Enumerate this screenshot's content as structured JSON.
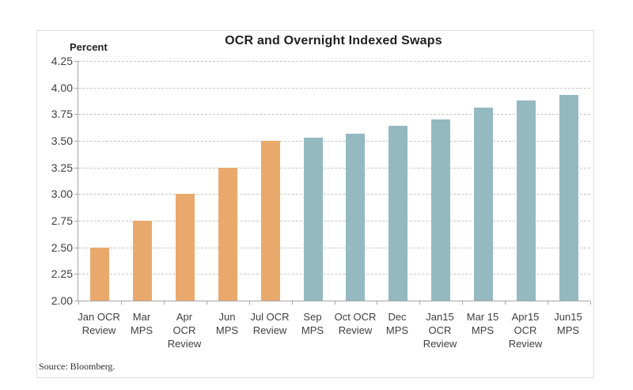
{
  "window": {
    "background": "#ffffff"
  },
  "chart_data": {
    "type": "bar",
    "title": "OCR and Overnight Indexed Swaps",
    "y_axis_title": "Percent",
    "source_note": "Source: Bloomberg.",
    "ylim": [
      2.0,
      4.25
    ],
    "ytick_interval": 0.25,
    "ytick_labels": [
      "4.25",
      "4.00",
      "3.75",
      "3.50",
      "3.25",
      "3.00",
      "2.75",
      "2.50",
      "2.25",
      "2.00"
    ],
    "grid": {
      "horizontal": true,
      "style": "dashed",
      "color": "#c6c6c6"
    },
    "legend": "none",
    "categories": [
      "Jan OCR Review",
      "Mar MPS",
      "Apr OCR Review",
      "Jun MPS",
      "Jul OCR Review",
      "Sep MPS",
      "Oct OCR Review",
      "Dec MPS",
      "Jan15 OCR Review",
      "Mar 15 MPS",
      "Apr15 OCR Review",
      "Jun15 MPS"
    ],
    "category_label_lines": [
      [
        "Jan OCR",
        "Review"
      ],
      [
        "Mar",
        "MPS"
      ],
      [
        "Apr",
        "OCR",
        "Review"
      ],
      [
        "Jun",
        "MPS"
      ],
      [
        "Jul OCR",
        "Review"
      ],
      [
        "Sep",
        "MPS"
      ],
      [
        "Oct OCR",
        "Review"
      ],
      [
        "Dec",
        "MPS"
      ],
      [
        "Jan15",
        "OCR",
        "Review"
      ],
      [
        "Mar 15",
        "MPS"
      ],
      [
        "Apr15",
        "OCR",
        "Review"
      ],
      [
        "Jun15",
        "MPS"
      ]
    ],
    "values": [
      2.5,
      2.75,
      3.0,
      3.25,
      3.5,
      3.53,
      3.57,
      3.64,
      3.7,
      3.81,
      3.88,
      3.93
    ],
    "bar_color_keys": [
      "orange",
      "orange",
      "orange",
      "orange",
      "orange",
      "blue",
      "blue",
      "blue",
      "blue",
      "blue",
      "blue",
      "blue"
    ],
    "bar_colors": {
      "orange": "#eaa96c",
      "blue": "#94b9c1"
    },
    "axis_color": "#a6a6a6",
    "text_color": "#3f3f3f"
  }
}
